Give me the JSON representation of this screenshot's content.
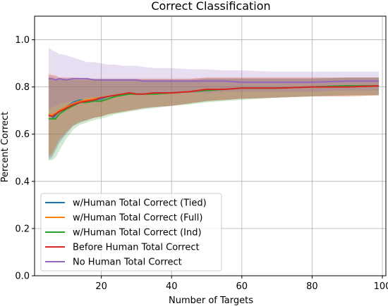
{
  "chart_data": {
    "type": "line",
    "title": "Correct Classification",
    "xlabel": "Number of Targets",
    "ylabel": "Percent Correct",
    "xlim": [
      1,
      101
    ],
    "ylim": [
      0.0,
      1.1
    ],
    "xticks": [
      20,
      40,
      60,
      80,
      100
    ],
    "yticks": [
      0.0,
      0.2,
      0.4,
      0.6,
      0.8,
      1.0
    ],
    "xtick_labels": [
      "20",
      "40",
      "60",
      "80",
      "100"
    ],
    "ytick_labels": [
      "0.0",
      "0.2",
      "0.4",
      "0.6",
      "0.8",
      "1.0"
    ],
    "grid": true,
    "legend_position": "lower-left",
    "series": [
      {
        "name": "w/Human Total Correct (Tied)",
        "color": "#1f77b4",
        "x": [
          5,
          6,
          7,
          8,
          10,
          12,
          14,
          16,
          18,
          20,
          22,
          24,
          26,
          28,
          30,
          32,
          35,
          40,
          45,
          50,
          55,
          60,
          70,
          80,
          90,
          99
        ],
        "y": [
          0.665,
          0.665,
          0.68,
          0.7,
          0.715,
          0.735,
          0.745,
          0.74,
          0.745,
          0.75,
          0.76,
          0.765,
          0.77,
          0.775,
          0.77,
          0.77,
          0.775,
          0.775,
          0.78,
          0.79,
          0.79,
          0.795,
          0.795,
          0.8,
          0.805,
          0.805
        ],
        "upper": [
          0.84,
          0.83,
          0.83,
          0.83,
          0.83,
          0.83,
          0.83,
          0.83,
          0.83,
          0.83,
          0.83,
          0.83,
          0.83,
          0.83,
          0.83,
          0.83,
          0.83,
          0.83,
          0.83,
          0.835,
          0.835,
          0.835,
          0.835,
          0.835,
          0.84,
          0.84
        ],
        "lower": [
          0.49,
          0.5,
          0.53,
          0.56,
          0.6,
          0.635,
          0.65,
          0.66,
          0.67,
          0.675,
          0.685,
          0.69,
          0.695,
          0.7,
          0.705,
          0.71,
          0.715,
          0.72,
          0.73,
          0.74,
          0.745,
          0.75,
          0.755,
          0.76,
          0.765,
          0.765
        ]
      },
      {
        "name": "w/Human Total Correct (Full)",
        "color": "#ff7f0e",
        "x": [
          5,
          6,
          7,
          8,
          10,
          12,
          14,
          16,
          18,
          20,
          22,
          24,
          26,
          28,
          30,
          32,
          35,
          40,
          45,
          50,
          55,
          60,
          70,
          80,
          90,
          99
        ],
        "y": [
          0.685,
          0.68,
          0.69,
          0.7,
          0.715,
          0.73,
          0.74,
          0.745,
          0.75,
          0.755,
          0.76,
          0.765,
          0.77,
          0.775,
          0.77,
          0.77,
          0.775,
          0.775,
          0.78,
          0.79,
          0.79,
          0.795,
          0.795,
          0.8,
          0.8,
          0.805
        ],
        "upper": [
          0.86,
          0.85,
          0.85,
          0.84,
          0.84,
          0.84,
          0.84,
          0.835,
          0.835,
          0.835,
          0.835,
          0.835,
          0.835,
          0.835,
          0.835,
          0.835,
          0.835,
          0.835,
          0.835,
          0.84,
          0.84,
          0.84,
          0.84,
          0.84,
          0.84,
          0.84
        ],
        "lower": [
          0.51,
          0.52,
          0.55,
          0.58,
          0.61,
          0.64,
          0.655,
          0.66,
          0.67,
          0.675,
          0.685,
          0.69,
          0.695,
          0.7,
          0.705,
          0.71,
          0.715,
          0.72,
          0.73,
          0.74,
          0.745,
          0.75,
          0.755,
          0.76,
          0.76,
          0.765
        ]
      },
      {
        "name": "w/Human Total Correct (Ind)",
        "color": "#2ca02c",
        "x": [
          5,
          6,
          7,
          8,
          10,
          12,
          14,
          16,
          18,
          20,
          22,
          24,
          26,
          28,
          30,
          32,
          35,
          40,
          45,
          50,
          55,
          60,
          70,
          80,
          90,
          99
        ],
        "y": [
          0.665,
          0.665,
          0.665,
          0.685,
          0.705,
          0.72,
          0.735,
          0.735,
          0.74,
          0.74,
          0.75,
          0.76,
          0.765,
          0.77,
          0.77,
          0.77,
          0.77,
          0.775,
          0.78,
          0.785,
          0.79,
          0.795,
          0.795,
          0.8,
          0.805,
          0.805
        ],
        "upper": [
          0.84,
          0.84,
          0.83,
          0.83,
          0.83,
          0.83,
          0.83,
          0.83,
          0.83,
          0.83,
          0.83,
          0.83,
          0.83,
          0.83,
          0.83,
          0.83,
          0.83,
          0.83,
          0.83,
          0.835,
          0.835,
          0.835,
          0.835,
          0.835,
          0.84,
          0.84
        ],
        "lower": [
          0.49,
          0.49,
          0.5,
          0.53,
          0.58,
          0.62,
          0.64,
          0.65,
          0.66,
          0.665,
          0.675,
          0.685,
          0.69,
          0.695,
          0.7,
          0.705,
          0.71,
          0.72,
          0.725,
          0.735,
          0.74,
          0.745,
          0.755,
          0.76,
          0.765,
          0.765
        ]
      },
      {
        "name": "Before Human Total Correct",
        "color": "#d62728",
        "x": [
          5,
          6,
          7,
          8,
          10,
          12,
          14,
          16,
          18,
          20,
          22,
          24,
          26,
          28,
          30,
          32,
          35,
          40,
          45,
          50,
          55,
          60,
          70,
          80,
          90,
          99
        ],
        "y": [
          0.68,
          0.675,
          0.685,
          0.695,
          0.71,
          0.725,
          0.735,
          0.74,
          0.745,
          0.755,
          0.76,
          0.765,
          0.77,
          0.775,
          0.77,
          0.77,
          0.775,
          0.775,
          0.78,
          0.79,
          0.79,
          0.795,
          0.795,
          0.8,
          0.8,
          0.805
        ],
        "upper": [
          0.85,
          0.85,
          0.845,
          0.84,
          0.84,
          0.84,
          0.835,
          0.835,
          0.835,
          0.835,
          0.835,
          0.835,
          0.835,
          0.835,
          0.835,
          0.835,
          0.835,
          0.835,
          0.835,
          0.84,
          0.84,
          0.84,
          0.84,
          0.84,
          0.84,
          0.84
        ],
        "lower": [
          0.5,
          0.51,
          0.54,
          0.57,
          0.605,
          0.635,
          0.65,
          0.66,
          0.67,
          0.675,
          0.685,
          0.69,
          0.695,
          0.7,
          0.705,
          0.71,
          0.715,
          0.72,
          0.73,
          0.74,
          0.745,
          0.75,
          0.755,
          0.76,
          0.76,
          0.765
        ]
      },
      {
        "name": "No Human Total Correct",
        "color": "#9467bd",
        "x": [
          5,
          6,
          7,
          8,
          10,
          12,
          14,
          16,
          18,
          20,
          22,
          24,
          26,
          28,
          30,
          32,
          35,
          40,
          45,
          50,
          55,
          60,
          70,
          80,
          90,
          99
        ],
        "y": [
          0.835,
          0.835,
          0.83,
          0.835,
          0.83,
          0.835,
          0.835,
          0.835,
          0.83,
          0.83,
          0.83,
          0.83,
          0.83,
          0.83,
          0.83,
          0.825,
          0.825,
          0.825,
          0.825,
          0.825,
          0.825,
          0.82,
          0.82,
          0.82,
          0.825,
          0.825
        ],
        "upper": [
          0.965,
          0.955,
          0.95,
          0.94,
          0.935,
          0.925,
          0.915,
          0.905,
          0.905,
          0.9,
          0.895,
          0.895,
          0.89,
          0.89,
          0.89,
          0.885,
          0.88,
          0.88,
          0.875,
          0.875,
          0.87,
          0.87,
          0.865,
          0.865,
          0.865,
          0.865
        ],
        "lower": [
          0.705,
          0.715,
          0.72,
          0.73,
          0.735,
          0.74,
          0.75,
          0.755,
          0.755,
          0.76,
          0.765,
          0.765,
          0.77,
          0.77,
          0.77,
          0.77,
          0.77,
          0.775,
          0.775,
          0.775,
          0.78,
          0.78,
          0.78,
          0.78,
          0.785,
          0.785
        ]
      }
    ]
  }
}
